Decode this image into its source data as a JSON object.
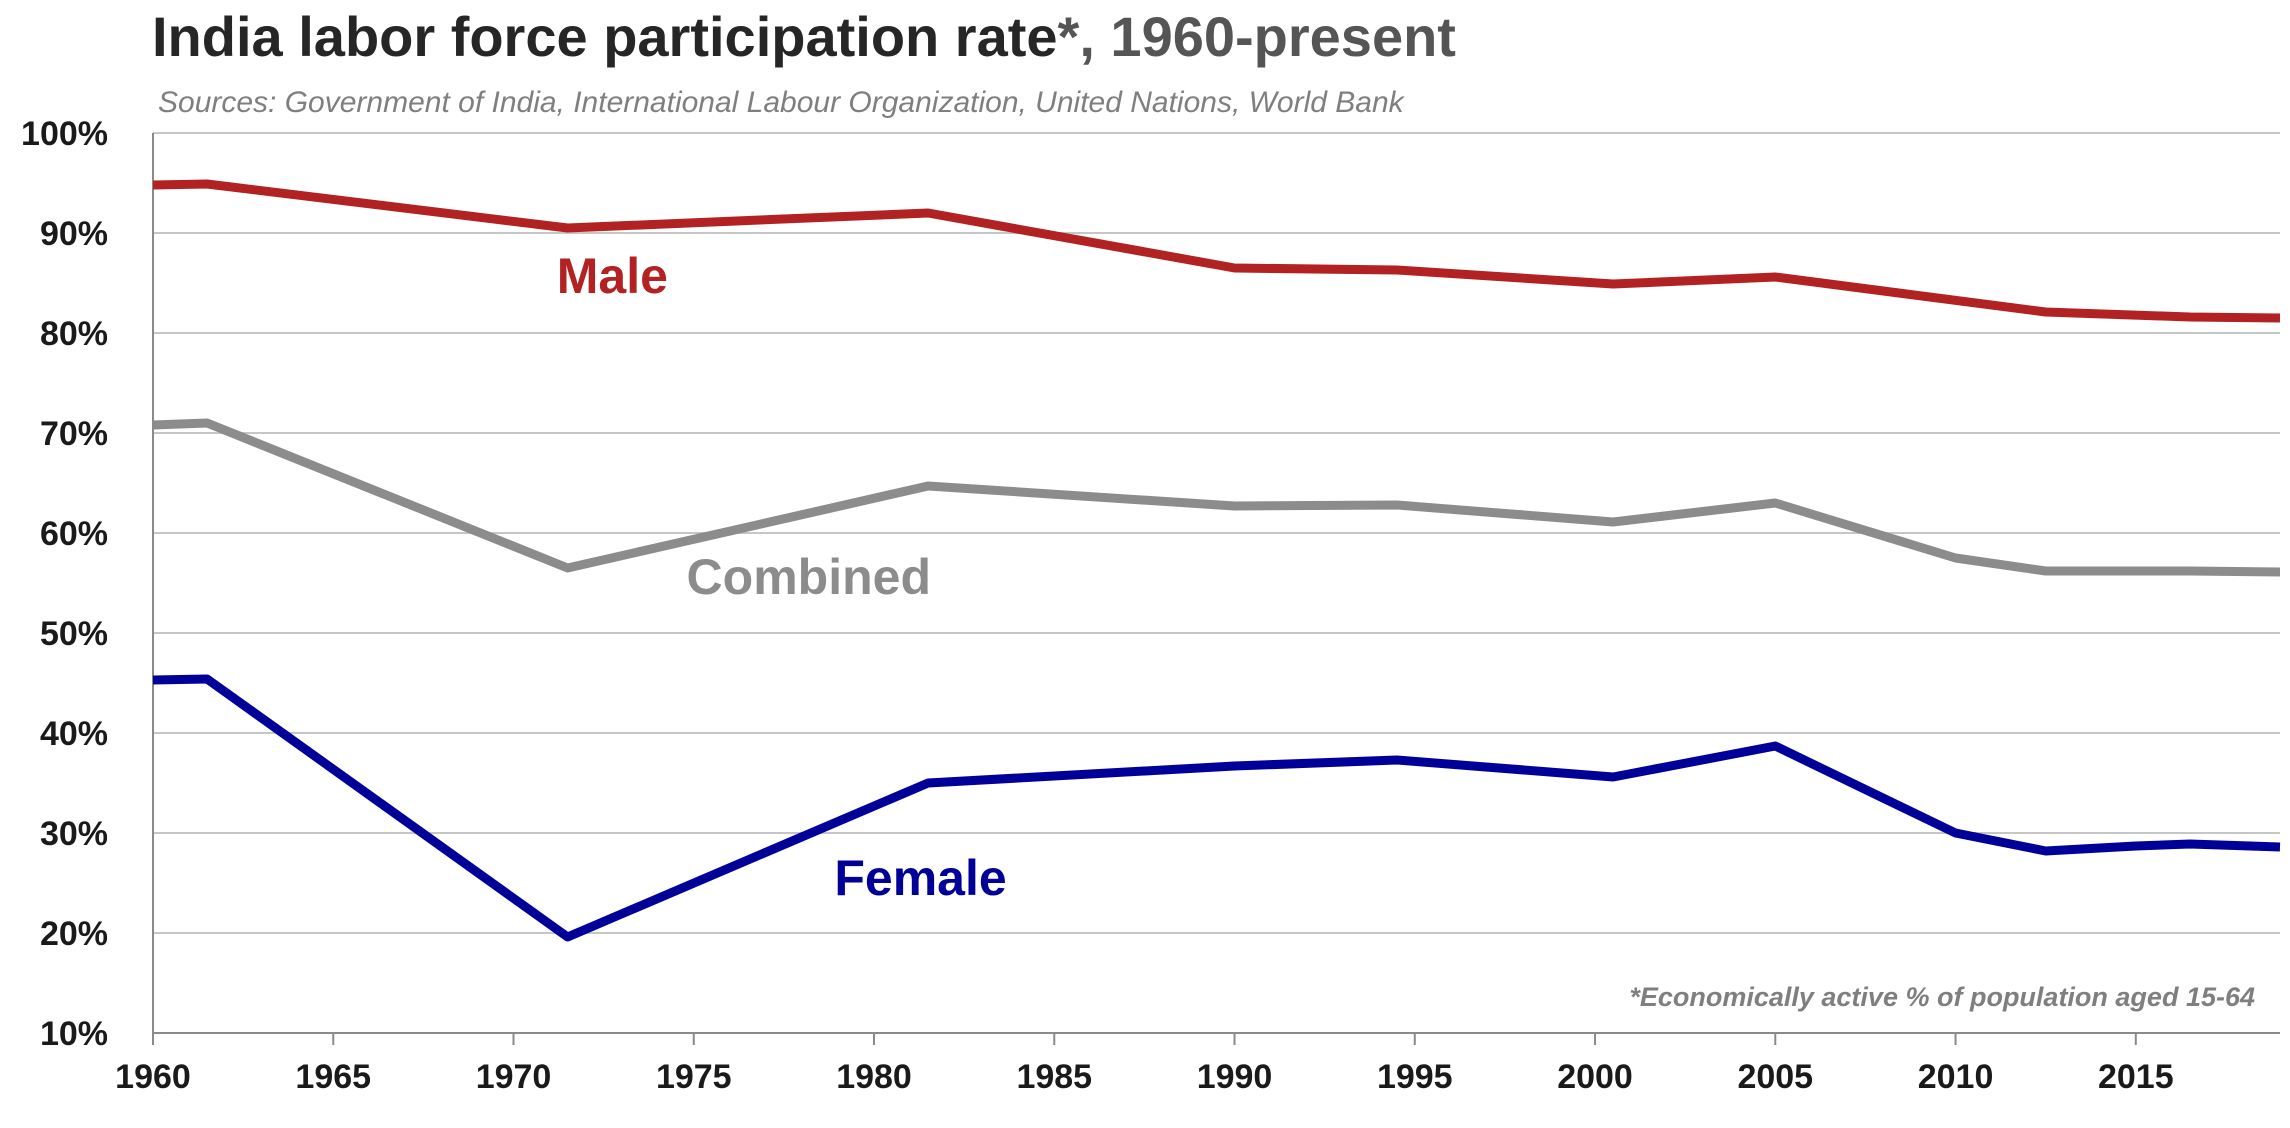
{
  "header": {
    "title_main": "India labor force participation rate",
    "title_star": "*",
    "title_rest": ", 1960-present",
    "sources": "Sources:  Government of India, International Labour Organization, United Nations, World Bank"
  },
  "chart_data": {
    "type": "line",
    "title": "India labor force participation rate*, 1960-present",
    "subtitle": "Sources:  Government of India, International Labour Organization, United Nations, World Bank",
    "xlabel": "",
    "ylabel": "",
    "xlim": [
      1960,
      2019
    ],
    "ylim": [
      10,
      100
    ],
    "x_ticks": [
      1960,
      1965,
      1970,
      1975,
      1980,
      1985,
      1990,
      1995,
      2000,
      2005,
      2010,
      2015
    ],
    "x_tick_labels": [
      "1960",
      "1965",
      "1970",
      "1975",
      "1980",
      "1985",
      "1990",
      "1995",
      "2000",
      "2005",
      "2010",
      "2015"
    ],
    "y_ticks": [
      10,
      20,
      30,
      40,
      50,
      60,
      70,
      80,
      90,
      100
    ],
    "y_tick_labels": [
      "10%",
      "20%",
      "30%",
      "40%",
      "50%",
      "60%",
      "70%",
      "80%",
      "90%",
      "100%"
    ],
    "grid": "horizontal",
    "legend": "inline labels",
    "series": [
      {
        "name": "Male",
        "color": "#b22222",
        "x": [
          1960,
          1961.5,
          1971.5,
          1981.5,
          1990,
          1994.5,
          2000.5,
          2005,
          2012.5,
          2016.5,
          2019
        ],
        "values": [
          94.8,
          94.9,
          90.5,
          92.0,
          86.5,
          86.3,
          84.9,
          85.6,
          82.1,
          81.6,
          81.5
        ]
      },
      {
        "name": "Combined",
        "color": "#8c8c8c",
        "x": [
          1960,
          1961.5,
          1971.5,
          1981.5,
          1990,
          1994.5,
          2000.5,
          2005,
          2010,
          2012.5,
          2016.5,
          2019
        ],
        "values": [
          70.8,
          71.0,
          56.5,
          64.7,
          62.7,
          62.8,
          61.1,
          63.0,
          57.5,
          56.2,
          56.2,
          56.1
        ]
      },
      {
        "name": "Female",
        "color": "#000099",
        "x": [
          1960,
          1961.5,
          1971.5,
          1981.5,
          1990,
          1994.5,
          2000.5,
          2005,
          2010,
          2012.5,
          2015,
          2016.5,
          2019
        ],
        "values": [
          45.3,
          45.4,
          19.6,
          35.0,
          36.7,
          37.3,
          35.6,
          38.7,
          30.0,
          28.2,
          28.7,
          28.9,
          28.6
        ]
      }
    ],
    "annotations": [
      "*Economically active % of population aged 15-64"
    ]
  }
}
